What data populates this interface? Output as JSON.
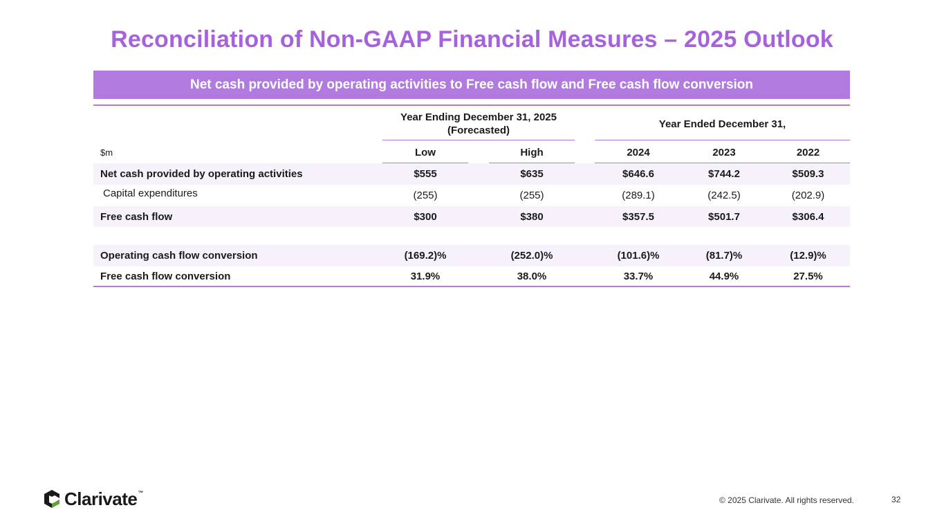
{
  "title": "Reconciliation of Non-GAAP Financial Measures – 2025 Outlook",
  "banner": "Net cash provided by operating activities to Free cash flow and Free cash flow conversion",
  "headers": {
    "forecast_line1": "Year Ending December 31, 2025",
    "forecast_line2": "(Forecasted)",
    "ended": "Year Ended December 31,",
    "unit": "$m",
    "columns": [
      "Low",
      "High",
      "2024",
      "2023",
      "2022"
    ]
  },
  "rows": [
    {
      "label": "Net cash provided by operating activities",
      "values": [
        "$555",
        "$635",
        "$646.6",
        "$744.2",
        "$509.3"
      ]
    },
    {
      "label": "Capital expenditures",
      "values": [
        "(255)",
        "(255)",
        "(289.1)",
        "(242.5)",
        "(202.9)"
      ]
    },
    {
      "label": "Free cash flow",
      "values": [
        "$300",
        "$380",
        "$357.5",
        "$501.7",
        "$306.4"
      ]
    },
    {
      "label": "Operating cash flow conversion",
      "values": [
        "(169.2)%",
        "(252.0)%",
        "(101.6)%",
        "(81.7)%",
        "(12.9)%"
      ]
    },
    {
      "label": "Free cash flow conversion",
      "values": [
        "31.9%",
        "38.0%",
        "33.7%",
        "44.9%",
        "27.5%"
      ]
    }
  ],
  "footer": {
    "brand": "Clarivate",
    "trademark": "™",
    "copyright": "© 2025 Clarivate. All rights reserved.",
    "page": "32"
  },
  "colors": {
    "accent": "#a661dc",
    "banner": "#b07ade",
    "shade": "#f6f1fb"
  }
}
